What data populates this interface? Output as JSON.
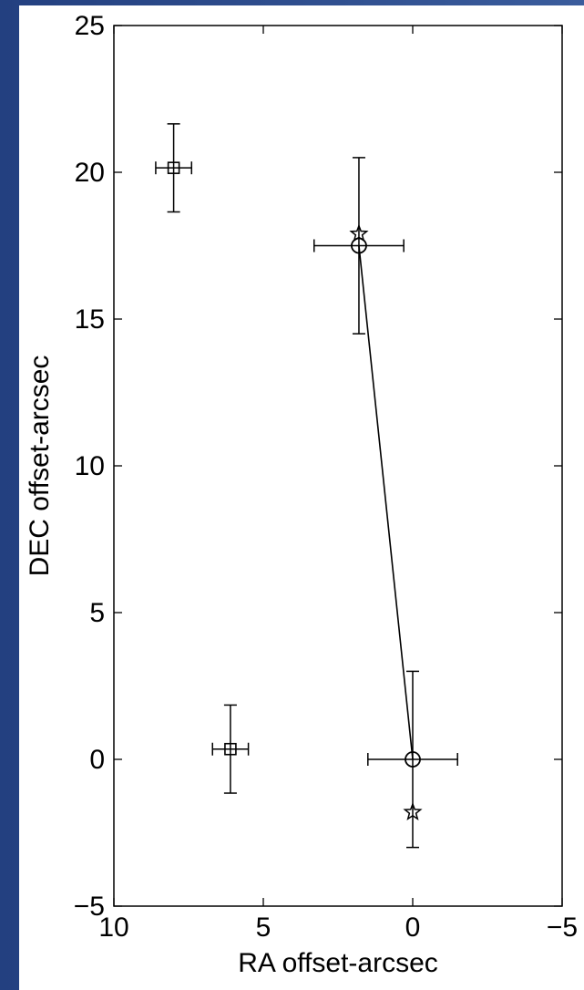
{
  "colors": {
    "background": "#2f4f8f",
    "panel": "#ffffff",
    "ink": "#000000"
  },
  "chart_data": {
    "type": "scatter",
    "title": "",
    "xlabel": "RA offset-arcsec",
    "ylabel": "DEC offset-arcsec",
    "xlim": [
      10,
      -5
    ],
    "ylim": [
      -5,
      25
    ],
    "x_reversed": true,
    "grid": false,
    "xticks": [
      10,
      5,
      0,
      -5
    ],
    "xtick_labels": [
      "10",
      "5",
      "0",
      "−5"
    ],
    "yticks": [
      -5,
      0,
      5,
      10,
      15,
      20,
      25
    ],
    "ytick_labels": [
      "−5",
      "0",
      "5",
      "10",
      "15",
      "20",
      "25"
    ],
    "series": [
      {
        "marker": "circle",
        "points": [
          {
            "x": 1.8,
            "y": 17.5,
            "xerr": 1.5,
            "yerr": 3.0
          },
          {
            "x": 0.0,
            "y": 0.0,
            "xerr": 1.5,
            "yerr": 3.0
          }
        ]
      },
      {
        "marker": "square",
        "points": [
          {
            "x": 8.0,
            "y": 20.15,
            "xerr": 0.6,
            "yerr": 1.5
          },
          {
            "x": 6.1,
            "y": 0.35,
            "xerr": 0.6,
            "yerr": 1.5
          }
        ]
      },
      {
        "marker": "star",
        "points": [
          {
            "x": 1.8,
            "y": 17.9
          },
          {
            "x": 0.0,
            "y": -1.8
          }
        ]
      }
    ],
    "lines": [
      {
        "x": [
          1.8,
          0.0
        ],
        "y": [
          17.5,
          0.0
        ]
      }
    ]
  }
}
